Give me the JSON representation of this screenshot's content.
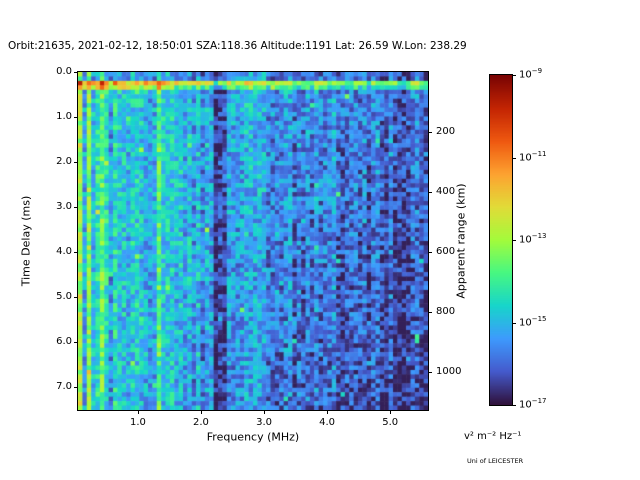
{
  "chart_data": {
    "type": "heatmap",
    "title": "Orbit:21635, 2021-02-12, 18:50:01 SZA:118.36 Altitude:1191 Lat: 26.59 W.Lon: 238.29",
    "xlabel": "Frequency (MHz)",
    "ylabel_left": "Time Delay (ms)",
    "ylabel_right": "Apparent range (km)",
    "credit": "Uni of LEICESTER",
    "x_range_mhz": [
      0.05,
      5.6
    ],
    "y_range_ms": [
      0.0,
      7.5
    ],
    "x_ticks": [
      "1.0",
      "2.0",
      "3.0",
      "4.0",
      "5.0"
    ],
    "x_tick_values": [
      1.0,
      2.0,
      3.0,
      4.0,
      5.0
    ],
    "y_ticks": [
      "0.0",
      "1.0",
      "2.0",
      "3.0",
      "4.0",
      "5.0",
      "6.0",
      "7.0"
    ],
    "y_tick_values": [
      0,
      1,
      2,
      3,
      4,
      5,
      6,
      7
    ],
    "right_tick_labels": [
      "200",
      "400",
      "600",
      "800",
      "1000"
    ],
    "right_tick_values_km": [
      200,
      400,
      600,
      800,
      1000
    ],
    "km_per_ms": 150,
    "colorbar": {
      "unit_label": "v² m⁻² Hz⁻¹",
      "tick_labels": [
        "10⁻⁹",
        "10⁻¹¹",
        "10⁻¹³",
        "10⁻¹⁵",
        "10⁻¹⁷"
      ],
      "tick_exponents": [
        "−9",
        "−11",
        "−13",
        "−15",
        "−17"
      ],
      "value_min": "1e-17",
      "value_max": "1e-9",
      "colormap": "turbo",
      "colormap_stops": [
        [
          0.0,
          48,
          18,
          59
        ],
        [
          0.1,
          69,
          91,
          205
        ],
        [
          0.2,
          62,
          155,
          254
        ],
        [
          0.3,
          24,
          214,
          203
        ],
        [
          0.4,
          72,
          248,
          130
        ],
        [
          0.5,
          164,
          252,
          60
        ],
        [
          0.6,
          226,
          220,
          56
        ],
        [
          0.7,
          254,
          163,
          49
        ],
        [
          0.8,
          239,
          89,
          17
        ],
        [
          0.9,
          196,
          37,
          3
        ],
        [
          1.0,
          122,
          4,
          3
        ]
      ]
    },
    "heatmap": {
      "cols": 80,
      "rows": 76,
      "seed": 20210212,
      "base": {
        "level": 0.3,
        "x_slope": -0.16,
        "noise": 0.22,
        "col_noise": 0.05,
        "xy_darken": 0.1
      },
      "features": {
        "surface_echo_rows": [
          {
            "row": 2,
            "amp": 0.3
          },
          {
            "row": 3,
            "amp": 0.16
          }
        ],
        "left_stripe_max_xf": 0.035,
        "left_stripe_amp": 0.22,
        "bright_columns": [
          {
            "xf": 0.23,
            "amp": 0.15,
            "halfwidth": 0
          },
          {
            "xf": 0.065,
            "amp": 0.1,
            "halfwidth": 0
          }
        ],
        "dark_columns": [
          {
            "xf": 0.41,
            "amp": 0.17,
            "halfwidth": 1
          },
          {
            "xf": 0.09,
            "amp": 0.07,
            "halfwidth": 0
          },
          {
            "xf": 0.35,
            "amp": 0.06,
            "halfwidth": 0
          }
        ],
        "speckle_prob": 0.015,
        "speckle_amp": 0.25
      }
    }
  }
}
